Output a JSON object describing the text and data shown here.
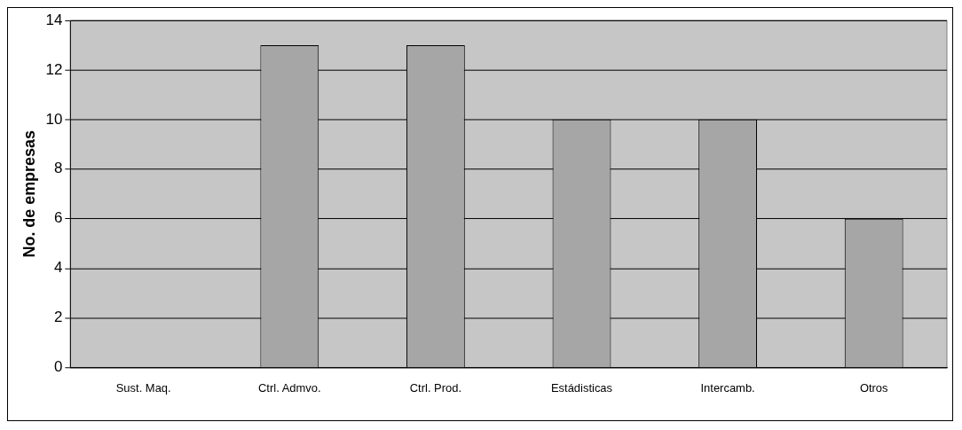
{
  "chart_data": {
    "type": "bar",
    "ylabel": "No. de empresas",
    "categories": [
      "Sust. Maq.",
      "Ctrl. Admvo.",
      "Ctrl. Prod.",
      "Estádisticas",
      "Intercamb.",
      "Otros"
    ],
    "values": [
      0,
      13,
      13,
      10,
      10,
      6
    ],
    "color": "#a6a6a6",
    "ylim": [
      0,
      14
    ],
    "yticks": [
      0,
      2,
      4,
      6,
      8,
      10,
      12,
      14
    ],
    "grid": "y",
    "legend": false
  }
}
